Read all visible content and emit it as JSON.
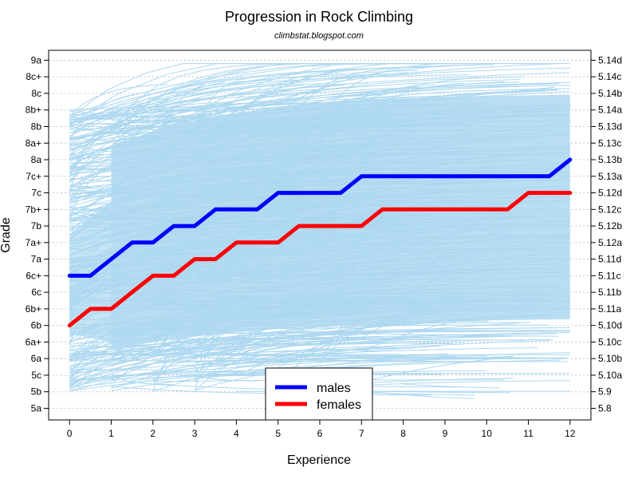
{
  "chart_data": {
    "type": "line",
    "title": "Progression in Rock Climbing",
    "subtitle": "climbstat.blogspot.com",
    "xlabel": "Experience",
    "ylabel": "Grade",
    "xlim": [
      -0.5,
      12.5
    ],
    "x_ticks": [
      0,
      1,
      2,
      3,
      4,
      5,
      6,
      7,
      8,
      9,
      10,
      11,
      12
    ],
    "grade_scale": [
      "5a",
      "5b",
      "5c",
      "6a",
      "6a+",
      "6b",
      "6b+",
      "6c",
      "6c+",
      "7a",
      "7a+",
      "7b",
      "7b+",
      "7c",
      "7c+",
      "8a",
      "8a+",
      "8b",
      "8b+",
      "8c",
      "8c+",
      "9a"
    ],
    "y_ticks_left": [
      {
        "label": "9a",
        "grade": 21
      },
      {
        "label": "8c+",
        "grade": 20
      },
      {
        "label": "8c",
        "grade": 19
      },
      {
        "label": "8b+",
        "grade": 18
      },
      {
        "label": "8b",
        "grade": 17
      },
      {
        "label": "8a+",
        "grade": 16
      },
      {
        "label": "8a",
        "grade": 15
      },
      {
        "label": "7c+",
        "grade": 14
      },
      {
        "label": "7c",
        "grade": 13
      },
      {
        "label": "7b+",
        "grade": 12
      },
      {
        "label": "7b",
        "grade": 11
      },
      {
        "label": "7a+",
        "grade": 10
      },
      {
        "label": "7a",
        "grade": 9
      },
      {
        "label": "6c+",
        "grade": 8
      },
      {
        "label": "6c",
        "grade": 7
      },
      {
        "label": "6b+",
        "grade": 6
      },
      {
        "label": "6b",
        "grade": 5
      },
      {
        "label": "6a+",
        "grade": 4
      },
      {
        "label": "6a",
        "grade": 3
      },
      {
        "label": "5c",
        "grade": 2
      },
      {
        "label": "5b",
        "grade": 1
      },
      {
        "label": "5a",
        "grade": 0
      }
    ],
    "y_ticks_right": [
      {
        "label": "5.14d",
        "grade": 21
      },
      {
        "label": "5.14c",
        "grade": 20
      },
      {
        "label": "5.14b",
        "grade": 19
      },
      {
        "label": "5.14a",
        "grade": 18
      },
      {
        "label": "5.13d",
        "grade": 17
      },
      {
        "label": "5.13c",
        "grade": 16
      },
      {
        "label": "5.13b",
        "grade": 15
      },
      {
        "label": "5.13a",
        "grade": 14
      },
      {
        "label": "5.12d",
        "grade": 13
      },
      {
        "label": "5.12c",
        "grade": 12
      },
      {
        "label": "5.12b",
        "grade": 11
      },
      {
        "label": "5.12a",
        "grade": 10
      },
      {
        "label": "5.11d",
        "grade": 9
      },
      {
        "label": "5.11c",
        "grade": 8
      },
      {
        "label": "5.11b",
        "grade": 7
      },
      {
        "label": "5.11a",
        "grade": 6
      },
      {
        "label": "5.10d",
        "grade": 5
      },
      {
        "label": "5.10c",
        "grade": 4
      },
      {
        "label": "5.10b",
        "grade": 3
      },
      {
        "label": "5.10a",
        "grade": 2
      },
      {
        "label": "5.9",
        "grade": 1
      },
      {
        "label": "5.8",
        "grade": 0
      }
    ],
    "ylim": [
      -0.7,
      21.6
    ],
    "grid": "horizontal dotted",
    "legend": {
      "placement": "bottom-center"
    },
    "series": [
      {
        "name": "males",
        "color": "#0000ff",
        "x": [
          0,
          0.5,
          1,
          1.5,
          2,
          2.5,
          3,
          3.5,
          4,
          4.5,
          5,
          5.5,
          6,
          6.5,
          7,
          7.5,
          8,
          8.5,
          9,
          9.5,
          10,
          10.5,
          11,
          11.5,
          12
        ],
        "y": [
          "6c+",
          "6c+",
          "7a",
          "7a+",
          "7a+",
          "7b",
          "7b",
          "7b+",
          "7b+",
          "7b+",
          "7c",
          "7c",
          "7c",
          "7c",
          "7c+",
          "7c+",
          "7c+",
          "7c+",
          "7c+",
          "7c+",
          "7c+",
          "7c+",
          "7c+",
          "7c+",
          "8a"
        ]
      },
      {
        "name": "females",
        "color": "#ff0000",
        "x": [
          0,
          0.5,
          1,
          1.5,
          2,
          2.5,
          3,
          3.5,
          4,
          4.5,
          5,
          5.5,
          6,
          6.5,
          7,
          7.5,
          8,
          8.5,
          9,
          9.5,
          10,
          10.5,
          11,
          11.5,
          12
        ],
        "y": [
          "6b",
          "6b+",
          "6b+",
          "6c",
          "6c+",
          "6c+",
          "7a",
          "7a",
          "7a+",
          "7a+",
          "7a+",
          "7b",
          "7b",
          "7b",
          "7b",
          "7b+",
          "7b+",
          "7b+",
          "7b+",
          "7b+",
          "7b+",
          "7b+",
          "7c",
          "7c",
          "7c"
        ]
      }
    ],
    "background_traces": {
      "color": "#add8f0",
      "description": "individual climber trajectories"
    }
  }
}
